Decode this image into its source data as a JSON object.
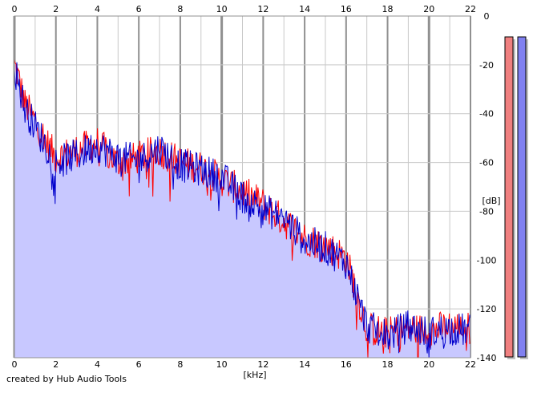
{
  "footer_text": "created by Hub Audio Tools",
  "colors": {
    "left_channel": "#ff0000",
    "right_channel": "#0000cc",
    "fill": "#c8c8ff",
    "meter_left": "#f08080",
    "meter_right": "#8080f0",
    "grid_major": "#909090",
    "grid_minor": "#c8c8c8"
  },
  "chart_data": {
    "type": "line",
    "title": "",
    "xlabel": "[kHz]",
    "ylabel": "[dB]",
    "xlim": [
      0,
      22
    ],
    "ylim": [
      -140,
      0
    ],
    "x_ticks": [
      "0",
      "2",
      "4",
      "6",
      "8",
      "10",
      "12",
      "14",
      "16",
      "18",
      "20",
      "22"
    ],
    "y_ticks": [
      "0",
      "-20",
      "-40",
      "-60",
      "-80",
      "-100",
      "-120",
      "-140"
    ],
    "grid": true,
    "legend": "none",
    "series": [
      {
        "color": "#ff0000",
        "x": [
          0,
          0.25,
          0.5,
          1,
          1.5,
          2,
          3,
          4,
          5,
          6,
          7,
          8,
          9,
          10,
          11,
          12,
          13,
          14,
          15,
          16,
          16.5,
          17,
          18,
          19,
          20,
          21,
          22
        ],
        "y": [
          -20,
          -27,
          -36,
          -43,
          -51,
          -58,
          -55,
          -52,
          -60,
          -58,
          -55,
          -60,
          -62,
          -67,
          -72,
          -77,
          -84,
          -91,
          -94,
          -99,
          -113,
          -128,
          -130,
          -128,
          -129,
          -127,
          -128
        ]
      },
      {
        "color": "#0000cc",
        "x": [
          0,
          0.25,
          0.5,
          1,
          1.5,
          2,
          3,
          4,
          5,
          6,
          7,
          8,
          9,
          10,
          11,
          12,
          13,
          14,
          15,
          16,
          16.5,
          17,
          18,
          19,
          20,
          21,
          22
        ],
        "y": [
          -21,
          -29,
          -38,
          -45,
          -53,
          -60,
          -57,
          -53,
          -58,
          -59,
          -54,
          -61,
          -63,
          -66,
          -74,
          -79,
          -83,
          -92,
          -95,
          -101,
          -114,
          -127,
          -131,
          -127,
          -130,
          -128,
          -129
        ]
      }
    ],
    "level_meters": [
      {
        "channel": "left",
        "level_db": -140
      },
      {
        "channel": "right",
        "level_db": -140
      }
    ]
  }
}
